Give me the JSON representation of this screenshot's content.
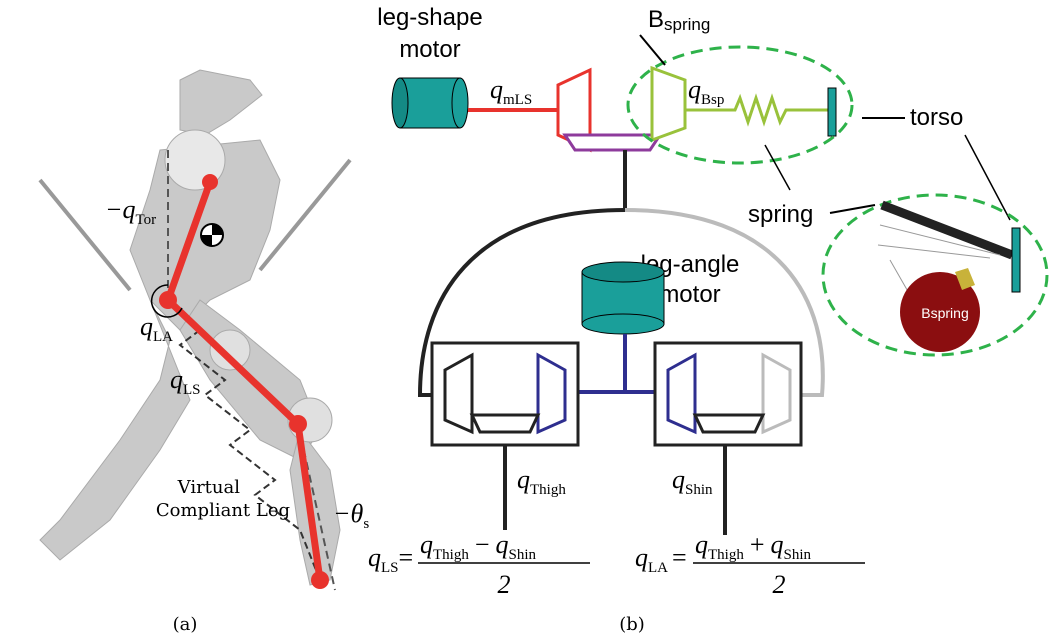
{
  "panel_a": {
    "caption": "(a)",
    "q_tor": {
      "base": "−q",
      "sub": "Tor"
    },
    "q_la": {
      "base": "q",
      "sub": "LA"
    },
    "q_ls": {
      "base": "q",
      "sub": "LS"
    },
    "theta_s": {
      "base": "−θ",
      "sub": "s"
    },
    "virtual_leg": [
      "Virtual",
      "Compliant Leg"
    ]
  },
  "panel_b": {
    "caption": "(b)",
    "leg_shape_motor": [
      "leg-shape",
      "motor"
    ],
    "b_spring": {
      "base": "B",
      "sub": "spring"
    },
    "q_mls": {
      "base": "q",
      "sub": "mLS"
    },
    "q_bsp": {
      "base": "q",
      "sub": "Bsp"
    },
    "torso": "torso",
    "spring": "spring",
    "bspring_badge": "Bspring",
    "leg_angle_motor": [
      "leg-angle",
      "motor"
    ],
    "q_thigh": {
      "base": "q",
      "sub": "Thigh"
    },
    "q_shin": {
      "base": "q",
      "sub": "Shin"
    },
    "formula_ls": {
      "lhs": {
        "base": "q",
        "sub": "LS"
      },
      "eq": "=",
      "num": [
        {
          "base": "q",
          "sub": "Thigh"
        },
        "−",
        {
          "base": "q",
          "sub": "Shin"
        }
      ],
      "den": "2"
    },
    "formula_la": {
      "lhs": {
        "base": "q",
        "sub": "LA"
      },
      "eq": "=",
      "num": [
        {
          "base": "q",
          "sub": "Thigh"
        },
        "+",
        {
          "base": "q",
          "sub": "Shin"
        }
      ],
      "den": "2"
    }
  }
}
